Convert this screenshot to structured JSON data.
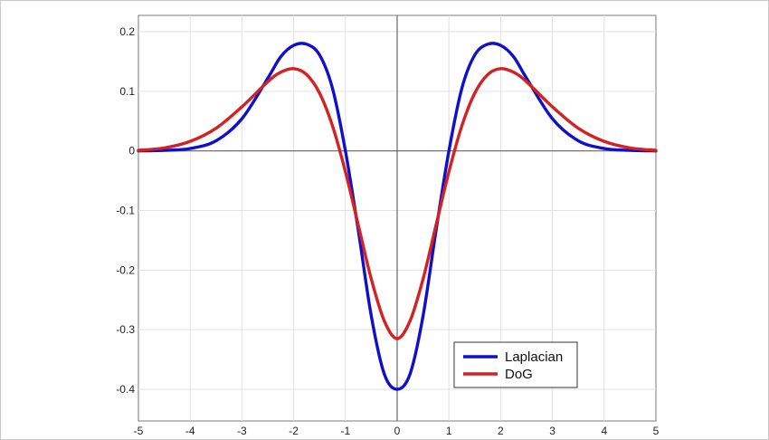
{
  "chart_data": {
    "type": "line",
    "title": "",
    "xlabel": "",
    "ylabel": "",
    "xlim": [
      -5,
      5
    ],
    "ylim": [
      -0.45,
      0.22
    ],
    "grid": true,
    "legend_position": "bottom-right",
    "x_ticks": [
      -5,
      -4,
      -3,
      -2,
      -1,
      0,
      1,
      2,
      3,
      4,
      5
    ],
    "x_tick_labels": [
      "-5",
      "-4",
      "-3",
      "-2",
      "-1",
      "0",
      "1",
      "2",
      "3",
      "4",
      "5"
    ],
    "y_ticks": [
      0.2,
      0.1,
      0,
      -0.1,
      -0.2,
      -0.3,
      -0.4
    ],
    "y_tick_labels": [
      "0.2",
      "0.1",
      "0",
      "-0.1",
      "-0.2",
      "-0.3",
      "-0.4"
    ],
    "series": [
      {
        "name": "Laplacian",
        "color": "#1010cc",
        "x": [
          -5,
          -4.5,
          -4,
          -3.5,
          -3,
          -2.5,
          -2.25,
          -2,
          -1.75,
          -1.5,
          -1.25,
          -1,
          -0.75,
          -0.5,
          -0.25,
          0,
          0.25,
          0.5,
          0.75,
          1,
          1.25,
          1.5,
          1.75,
          2,
          2.25,
          2.5,
          3,
          3.5,
          4,
          4.5,
          5
        ],
        "y": [
          0.0,
          0.001,
          0.004,
          0.017,
          0.054,
          0.122,
          0.158,
          0.177,
          0.179,
          0.161,
          0.105,
          0.0,
          -0.134,
          -0.277,
          -0.374,
          -0.4,
          -0.374,
          -0.277,
          -0.134,
          0.0,
          0.105,
          0.161,
          0.179,
          0.177,
          0.158,
          0.122,
          0.054,
          0.017,
          0.004,
          0.001,
          0.0
        ]
      },
      {
        "name": "DoG",
        "color": "#d42222",
        "x": [
          -5,
          -4.5,
          -4,
          -3.5,
          -3,
          -2.5,
          -2.25,
          -2,
          -1.75,
          -1.5,
          -1.25,
          -1,
          -0.75,
          -0.5,
          -0.25,
          0,
          0.25,
          0.5,
          0.75,
          1,
          1.25,
          1.5,
          1.75,
          2,
          2.25,
          2.5,
          3,
          3.5,
          4,
          4.5,
          5
        ],
        "y": [
          0.001,
          0.005,
          0.016,
          0.038,
          0.074,
          0.116,
          0.132,
          0.138,
          0.128,
          0.097,
          0.042,
          -0.035,
          -0.125,
          -0.215,
          -0.285,
          -0.315,
          -0.285,
          -0.215,
          -0.125,
          -0.035,
          0.042,
          0.097,
          0.128,
          0.138,
          0.132,
          0.116,
          0.074,
          0.038,
          0.016,
          0.005,
          0.001
        ]
      }
    ],
    "legend": [
      {
        "label": "Laplacian",
        "color": "#1010cc"
      },
      {
        "label": "DoG",
        "color": "#d42222"
      }
    ]
  }
}
